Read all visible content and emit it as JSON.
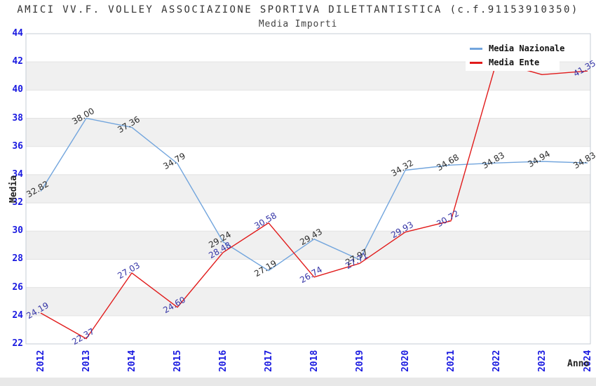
{
  "title": "AMICI VV.F. VOLLEY ASSOCIAZIONE SPORTIVA DILETTANTISTICA (c.f.91153910350)",
  "subtitle": "Media Importi",
  "legend": {
    "items": [
      {
        "label": "Media Nazionale",
        "color": "#72a5dd"
      },
      {
        "label": "Media Ente",
        "color": "#e11b1b"
      }
    ]
  },
  "axes": {
    "y_title": "Media",
    "x_title": "Anno",
    "y_ticks": [
      "22",
      "24",
      "26",
      "28",
      "30",
      "32",
      "34",
      "36",
      "38",
      "40",
      "42",
      "44"
    ],
    "x_ticks": [
      "2012",
      "2013",
      "2014",
      "2015",
      "2016",
      "2017",
      "2018",
      "2019",
      "2020",
      "2021",
      "2022",
      "2023",
      "2024"
    ],
    "tick_color": "#1a1ae0",
    "band_color": "#f0f0f0",
    "border_color": "#c6ccd6"
  },
  "chart_data": {
    "type": "line",
    "title": "AMICI VV.F. VOLLEY ASSOCIAZIONE SPORTIVA DILETTANTISTICA (c.f.91153910350)",
    "subtitle": "Media Importi",
    "xlabel": "Anno",
    "ylabel": "Media",
    "x": [
      2012,
      2013,
      2014,
      2015,
      2016,
      2017,
      2018,
      2019,
      2020,
      2021,
      2022,
      2023,
      2024
    ],
    "ylim": [
      22,
      44
    ],
    "grid": "horizontal gray bands every 2 units (24-26, 28-30, 32-34, 36-38, 40-42)",
    "legend_position": "top-right",
    "series": [
      {
        "name": "Media Nazionale",
        "color": "#72a5dd",
        "label_color": "#2b2b2b",
        "values": [
          32.82,
          38.0,
          37.36,
          34.79,
          29.24,
          27.19,
          29.43,
          27.97,
          34.32,
          34.68,
          34.83,
          34.94,
          34.83
        ],
        "label_visible": [
          true,
          true,
          true,
          true,
          true,
          true,
          true,
          true,
          true,
          true,
          true,
          true,
          true
        ]
      },
      {
        "name": "Media Ente",
        "color": "#e11b1b",
        "label_color": "#3434a6",
        "values": [
          24.19,
          22.37,
          27.03,
          24.6,
          28.48,
          30.58,
          26.74,
          27.71,
          29.93,
          30.72,
          42.0,
          41.1,
          41.35
        ],
        "label_visible": [
          true,
          true,
          true,
          true,
          true,
          true,
          true,
          true,
          true,
          true,
          false,
          false,
          true
        ],
        "note": "2022 and 2023 values estimated from line position; their labels are hidden behind the legend box"
      }
    ]
  }
}
